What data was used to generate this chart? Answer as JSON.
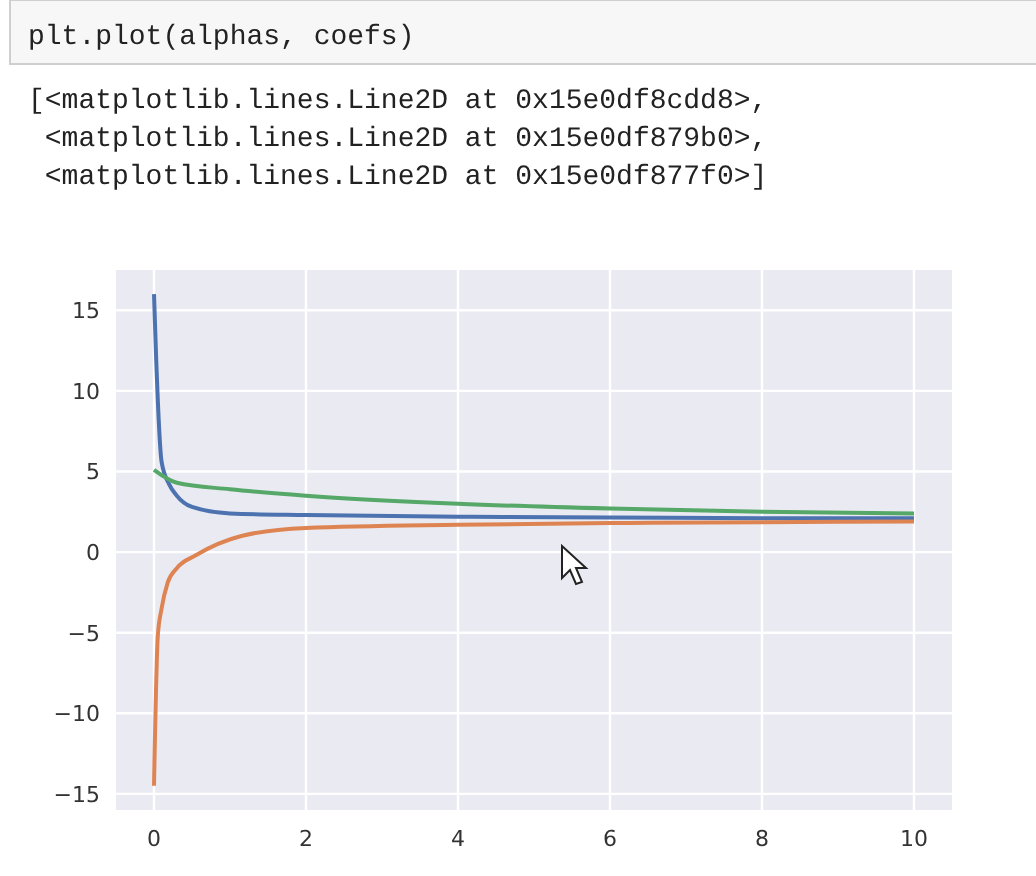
{
  "chart_data": {
    "type": "line",
    "annotations": [
      "plt.plot(alphas, coefs)",
      "[<matplotlib.lines.Line2D at 0x15e0df8cdd8>,",
      " <matplotlib.lines.Line2D at 0x15e0df879b0>,",
      " <matplotlib.lines.Line2D at 0x15e0df877f0>]"
    ],
    "series": [
      {
        "color": "#4c72b0",
        "x": [
          0,
          0.03,
          0.1,
          0.2,
          0.3,
          0.5,
          1,
          2,
          4,
          6,
          8,
          10
        ],
        "values": [
          16,
          11.8,
          5.6,
          4.2,
          3.5,
          2.8,
          2.4,
          2.3,
          2.2,
          2.15,
          2.1,
          2.1
        ]
      },
      {
        "color": "#dd8452",
        "x": [
          0,
          0.05,
          0.1,
          0.18,
          0.3,
          0.55,
          1.15,
          2,
          4,
          6,
          8,
          10
        ],
        "values": [
          -14.5,
          -5.2,
          -3.5,
          -1.9,
          -1,
          -0.2,
          1.0,
          1.5,
          1.7,
          1.8,
          1.85,
          1.9
        ]
      },
      {
        "color": "#55a868",
        "x": [
          0,
          0.3,
          1,
          2,
          4,
          6,
          8,
          10
        ],
        "values": [
          5.1,
          4.3,
          3.9,
          3.5,
          3.0,
          2.7,
          2.5,
          2.4
        ]
      }
    ],
    "xlim": [
      -0.5,
      10.5
    ],
    "ylim": [
      -16,
      17.5
    ],
    "xticks": [
      0,
      2,
      4,
      6,
      8,
      10
    ],
    "yticks": [
      -15,
      -10,
      -5,
      0,
      5,
      10,
      15
    ],
    "grid": true,
    "marker": "none",
    "line_style": "solid"
  }
}
